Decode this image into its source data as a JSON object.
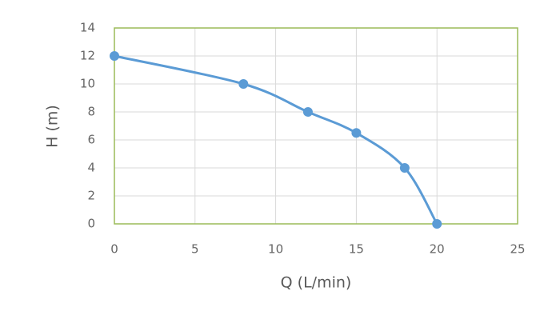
{
  "chart_data": {
    "type": "line",
    "smooth": true,
    "x_label": "Q (L/min)",
    "y_label": "H (m)",
    "series": [
      {
        "color": "#5b9bd5",
        "x": [
          0,
          8,
          12,
          15,
          18,
          20
        ],
        "values": [
          12,
          10,
          8,
          6.5,
          4,
          0
        ]
      }
    ],
    "xlim": [
      0,
      25
    ],
    "xticks": [
      0,
      5,
      10,
      15,
      20,
      25
    ],
    "ylim": [
      0,
      14
    ],
    "yticks": [
      0,
      2,
      4,
      6,
      8,
      10,
      12,
      14
    ],
    "grid": true,
    "frame_color": "#9bbb59"
  }
}
